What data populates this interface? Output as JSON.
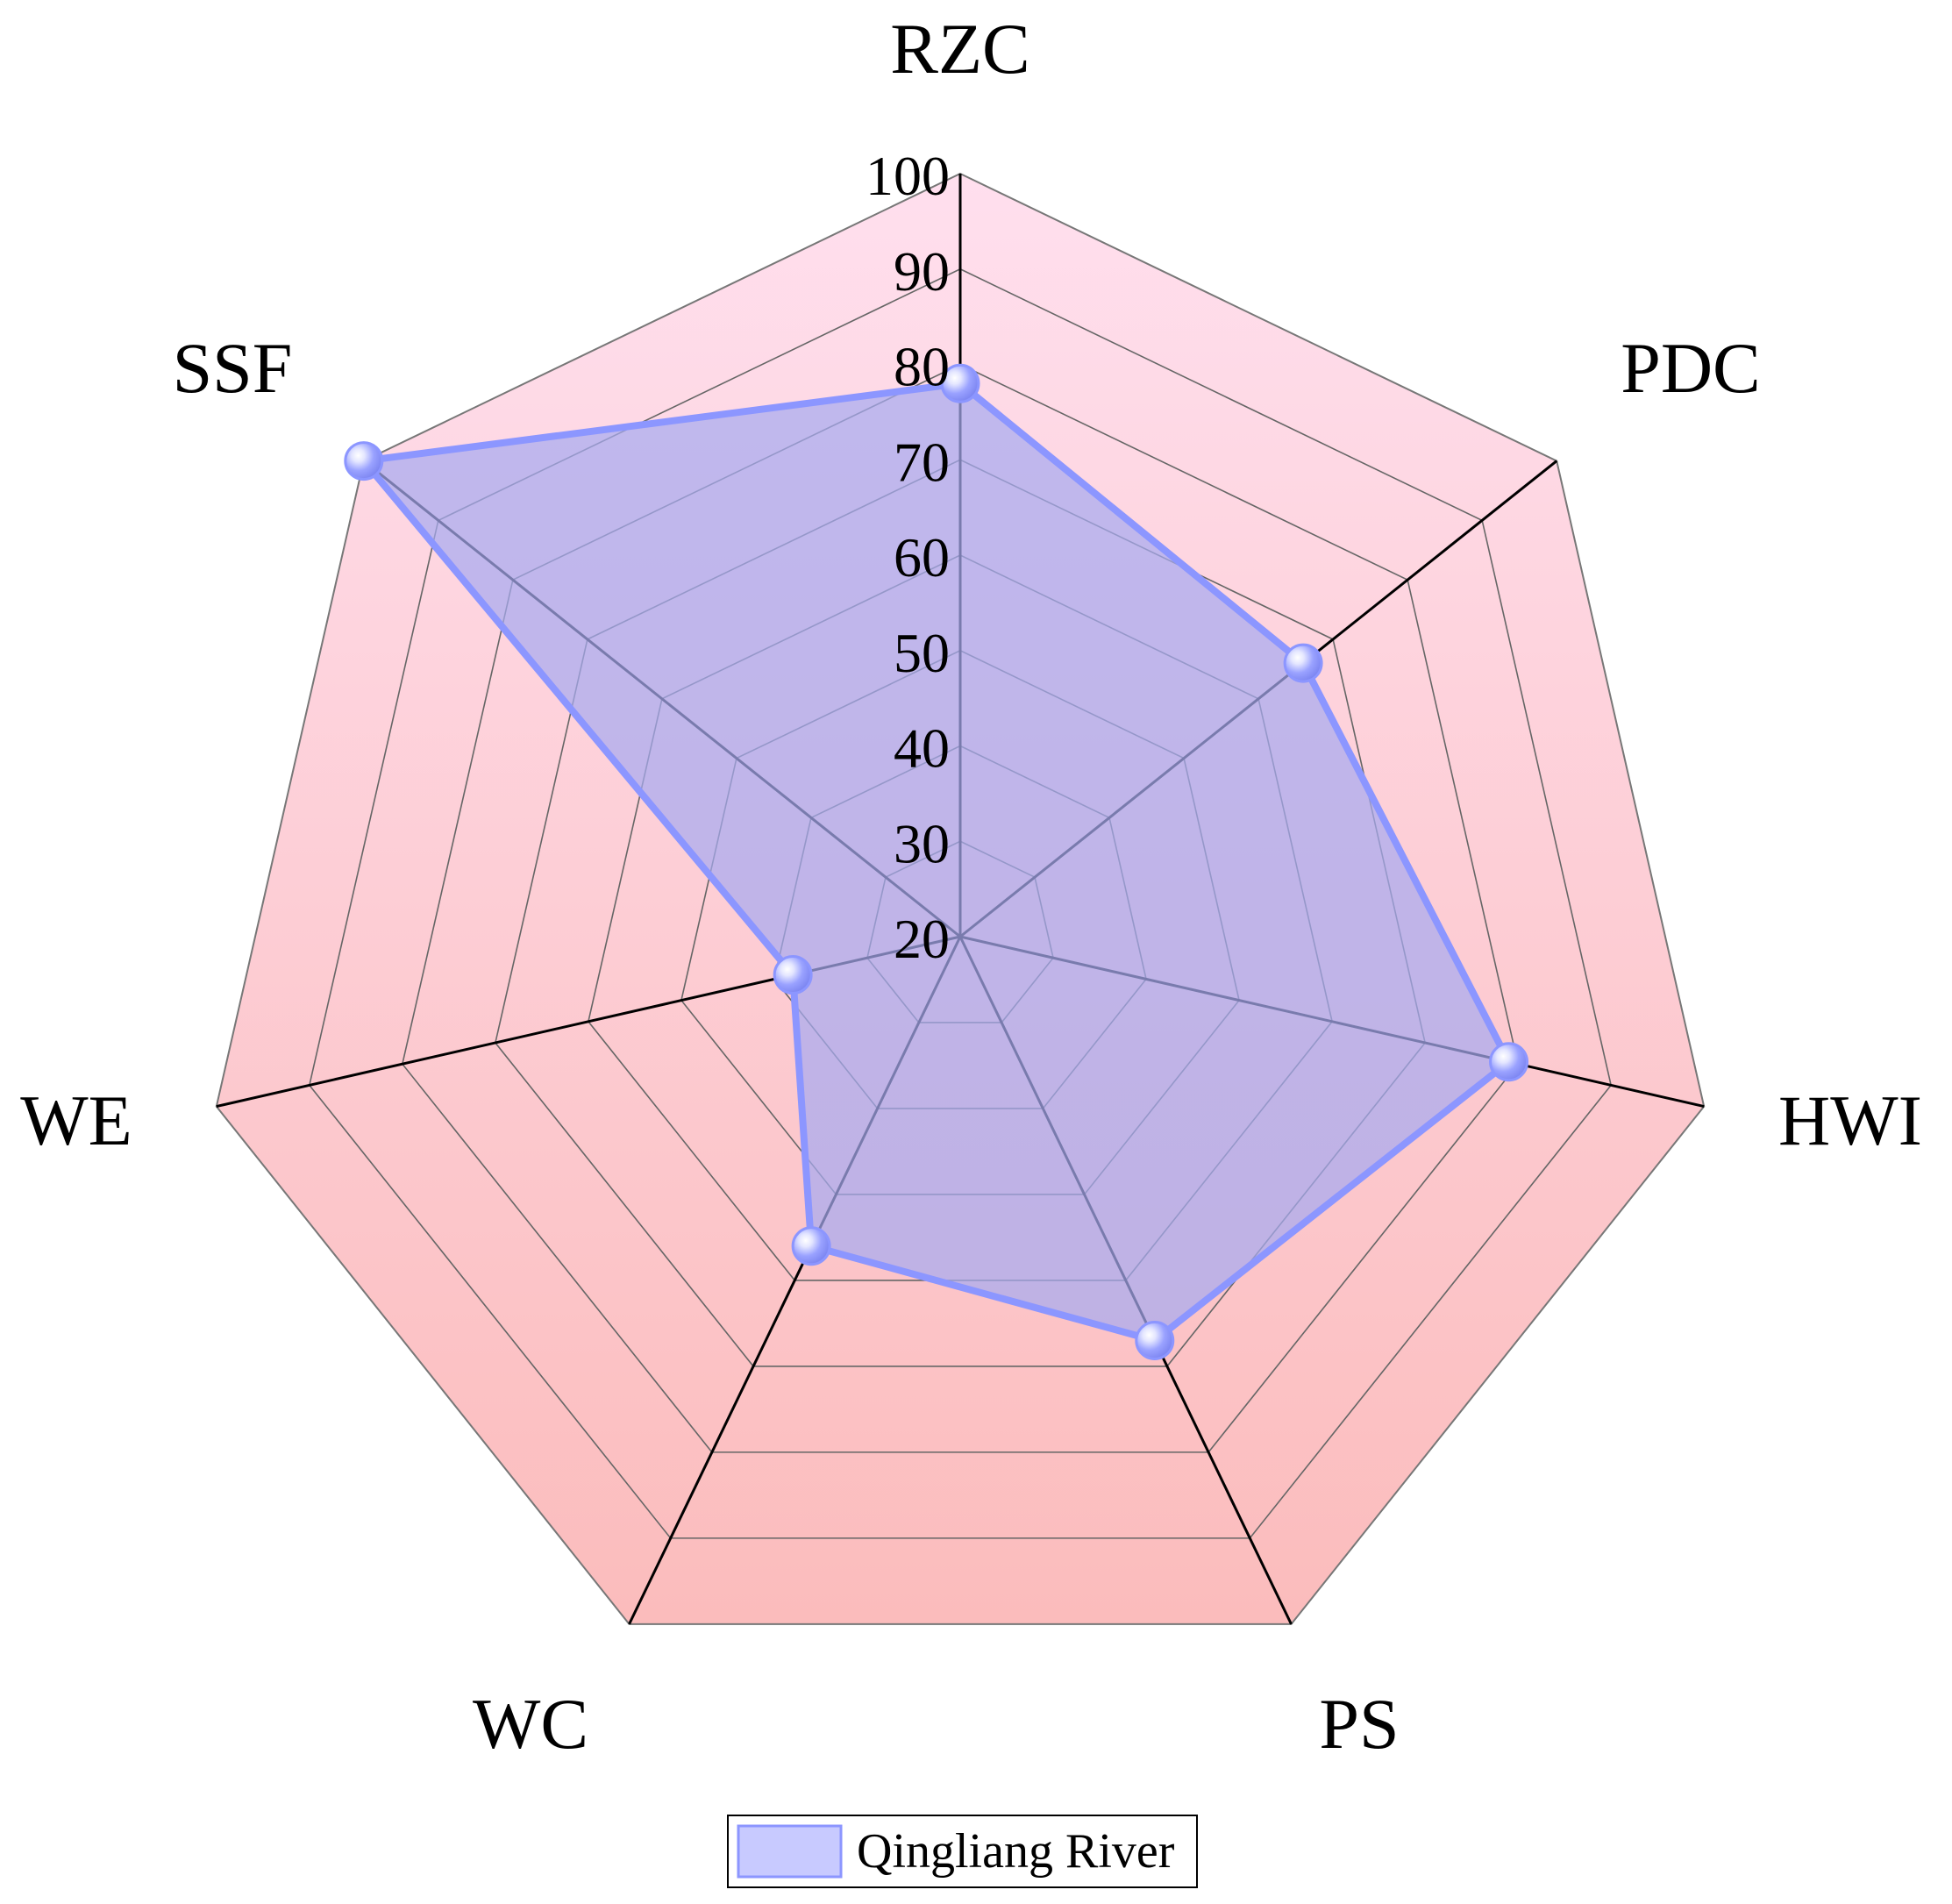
{
  "chart_data": {
    "type": "radar",
    "axes": [
      "RZC",
      "PDC",
      "HWI",
      "PS",
      "WC",
      "WE",
      "SSF"
    ],
    "rlim": [
      20,
      100
    ],
    "ticks": [
      "20",
      "30",
      "40",
      "50",
      "60",
      "70",
      "80",
      "90",
      "100"
    ],
    "series": [
      {
        "name": "Qingliang River",
        "values": [
          78,
          66,
          79,
          67,
          56,
          38,
          100
        ]
      }
    ],
    "legend": "bottom-center",
    "grid": true,
    "colors": {
      "series_line": "#8c96ff",
      "series_fill": "#a7aaf0",
      "background_top": "#ffdfee",
      "background_bottom": "#fbbcbc",
      "grid": "#666666",
      "axis": "#000000"
    }
  }
}
